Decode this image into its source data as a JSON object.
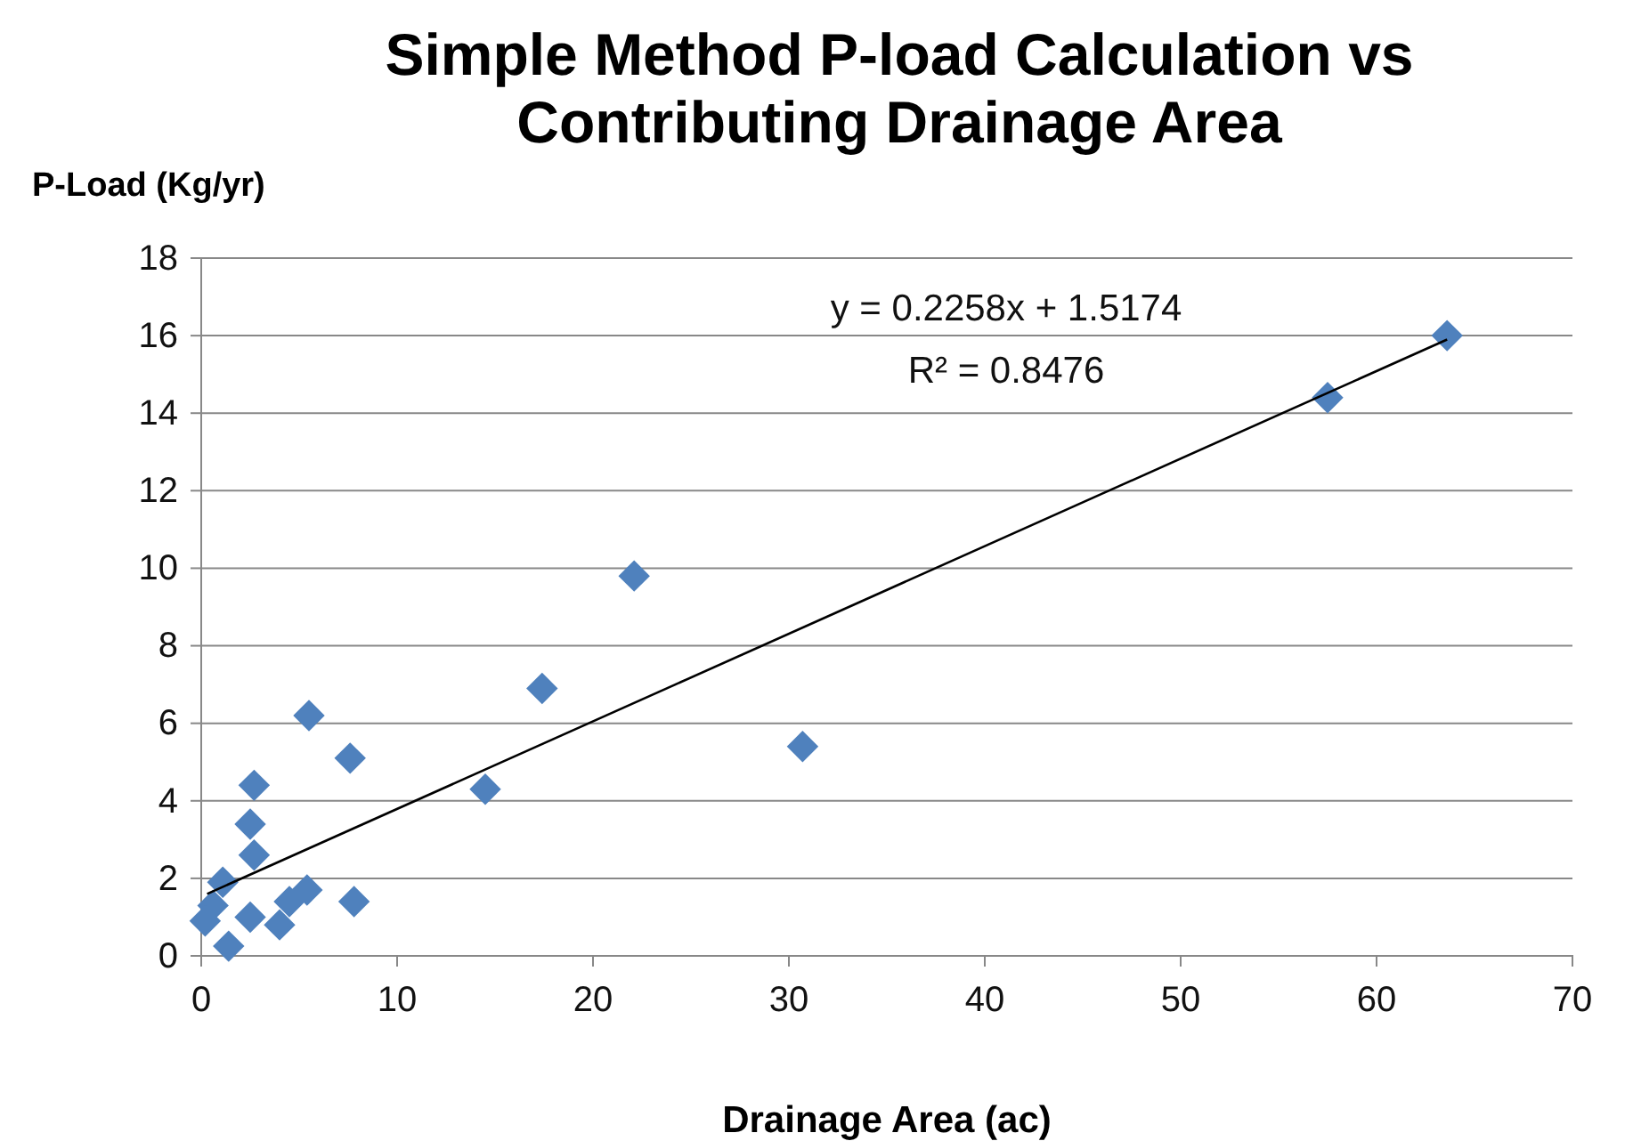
{
  "chart_data": {
    "type": "scatter",
    "title": "Simple Method P-load Calculation vs Contributing Drainage Area",
    "xlabel": "Drainage Area (ac)",
    "ylabel": "P-Load (Kg/yr)",
    "xlim": [
      0,
      70
    ],
    "xticks": [
      0,
      10,
      20,
      30,
      40,
      50,
      60,
      70
    ],
    "ylim": [
      0,
      18
    ],
    "yticks": [
      0,
      2,
      4,
      6,
      8,
      10,
      12,
      14,
      16,
      18
    ],
    "grid": "y",
    "annotations": [
      "y = 0.2258x + 1.5174",
      "R² = 0.8476"
    ],
    "series": [
      {
        "color": "#4f81bd",
        "marker": "diamond",
        "x": [
          63.6,
          57.5,
          22.1,
          17.4,
          30.7,
          14.5,
          5.5,
          7.6,
          2.7,
          2.5,
          2.7,
          1.1,
          7.8,
          5.4,
          4.5,
          4.0,
          2.5,
          0.6,
          0.2,
          1.4
        ],
        "values": [
          16.0,
          14.4,
          9.8,
          6.9,
          5.4,
          4.3,
          6.2,
          5.1,
          4.4,
          3.4,
          2.6,
          1.9,
          1.4,
          1.7,
          1.4,
          0.8,
          1.0,
          1.3,
          0.9,
          0.25
        ]
      },
      {
        "type": "line",
        "color": "#000000",
        "marker": "none",
        "x": [
          0.3,
          63.6
        ],
        "values": [
          1.6,
          15.9
        ]
      }
    ]
  }
}
